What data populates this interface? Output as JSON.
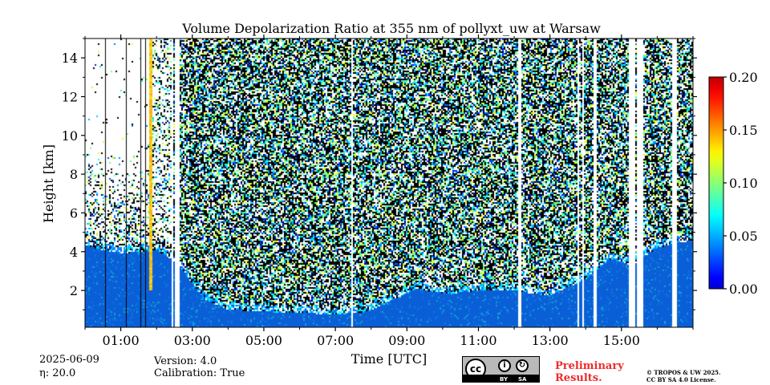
{
  "chart_data": {
    "type": "heatmap",
    "title": "Volume Depolarization Ratio at 355 nm of pollyxt_uw at Warsaw",
    "xlabel": "Time [UTC]",
    "ylabel": "Height [km]",
    "xlim_hours": [
      0.0,
      17.0
    ],
    "ylim": [
      0.1,
      15.0
    ],
    "x_ticks": [
      "01:00",
      "03:00",
      "05:00",
      "07:00",
      "09:00",
      "11:00",
      "13:00",
      "15:00"
    ],
    "x_tick_hours": [
      1,
      3,
      5,
      7,
      9,
      11,
      13,
      15
    ],
    "y_ticks": [
      "2",
      "4",
      "6",
      "8",
      "10",
      "12",
      "14"
    ],
    "y_tick_values": [
      2,
      4,
      6,
      8,
      10,
      12,
      14
    ],
    "colorbar": {
      "min": 0.0,
      "max": 0.2,
      "ticks": [
        "0.00",
        "0.05",
        "0.10",
        "0.15",
        "0.20"
      ],
      "tick_values": [
        0.0,
        0.05,
        0.1,
        0.15,
        0.2
      ],
      "colormap": "jet"
    },
    "boundary_layer_top_km": [
      [
        0.0,
        4.3
      ],
      [
        1.0,
        3.9
      ],
      [
        2.0,
        4.1
      ],
      [
        2.6,
        3.4
      ],
      [
        3.3,
        1.6
      ],
      [
        4.0,
        1.0
      ],
      [
        5.0,
        0.9
      ],
      [
        6.0,
        0.85
      ],
      [
        7.0,
        0.75
      ],
      [
        7.9,
        0.9
      ],
      [
        8.6,
        1.5
      ],
      [
        9.3,
        2.1
      ],
      [
        10.0,
        1.8
      ],
      [
        11.0,
        2.0
      ],
      [
        12.0,
        2.0
      ],
      [
        13.0,
        1.7
      ],
      [
        14.0,
        2.6
      ],
      [
        14.7,
        3.6
      ],
      [
        15.3,
        3.3
      ],
      [
        16.0,
        4.2
      ],
      [
        17.0,
        4.6
      ]
    ],
    "data_gaps_hours": [
      [
        2.52,
        2.65
      ],
      [
        2.43,
        2.47
      ],
      [
        7.45,
        7.5
      ],
      [
        12.12,
        12.22
      ],
      [
        13.78,
        13.82
      ],
      [
        13.9,
        13.96
      ],
      [
        14.2,
        14.33
      ],
      [
        15.2,
        15.38
      ],
      [
        15.45,
        15.6
      ],
      [
        16.4,
        16.55
      ]
    ],
    "high_depol_streak_hours": [
      1.8,
      1.9
    ]
  },
  "footer": {
    "date": "2025-06-09",
    "eta": "η: 20.0",
    "version": "Version: 4.0",
    "calibration": "Calibration: True",
    "preliminary_line1": "Preliminary",
    "preliminary_line2": "Results.",
    "copyright_line1": "© TROPOS & UW 2025.",
    "copyright_line2": "CC BY SA 4.0 License.",
    "license_badge": {
      "cc": "cc",
      "by": "BY",
      "sa": "SA"
    }
  },
  "colors": {
    "background_signal": "#0a5fd6",
    "noise_black": "#000000",
    "accent_red": "#ee2a2a"
  }
}
